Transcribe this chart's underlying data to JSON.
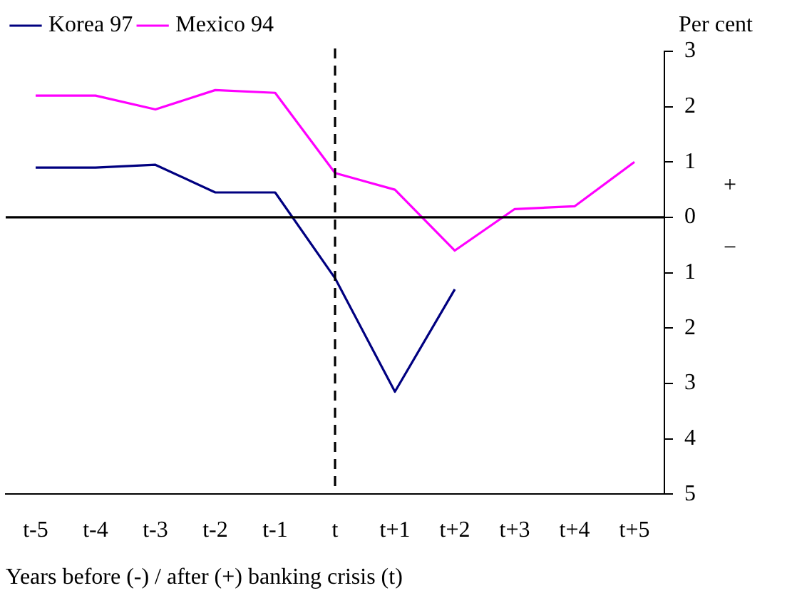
{
  "chart_data": {
    "type": "line",
    "xlabel": "Years before (-) / after (+) banking crisis (t)",
    "ylabel": "Per cent",
    "categories": [
      "t-5",
      "t-4",
      "t-3",
      "t-2",
      "t-1",
      "t",
      "t+1",
      "t+2",
      "t+3",
      "t+4",
      "t+5"
    ],
    "series": [
      {
        "name": "Korea 97",
        "color": "#000080",
        "values": [
          0.9,
          0.9,
          0.95,
          0.45,
          0.45,
          -1.1,
          -3.15,
          -1.3,
          null,
          null,
          null
        ]
      },
      {
        "name": "Mexico 94",
        "color": "#ff00ff",
        "values": [
          2.2,
          2.2,
          1.95,
          2.3,
          2.25,
          0.8,
          0.5,
          -0.6,
          0.15,
          0.2,
          1.0
        ]
      }
    ],
    "ylim": [
      -5,
      3
    ],
    "yticks": [
      {
        "value": -5,
        "label": "5"
      },
      {
        "value": -4,
        "label": "4"
      },
      {
        "value": -3,
        "label": "3"
      },
      {
        "value": -2,
        "label": "2"
      },
      {
        "value": -1,
        "label": "1"
      },
      0,
      1,
      2,
      3
    ],
    "ref_lines": [
      {
        "axis": "y",
        "value": 0,
        "color": "#000000",
        "line_style": "solid"
      },
      {
        "axis": "x",
        "value": "t",
        "color": "#000000",
        "line_style": "dashed"
      }
    ],
    "annotations": [
      "+",
      "−"
    ],
    "legend": "top left",
    "grid": false,
    "marker": "none",
    "line_style": "solid"
  }
}
